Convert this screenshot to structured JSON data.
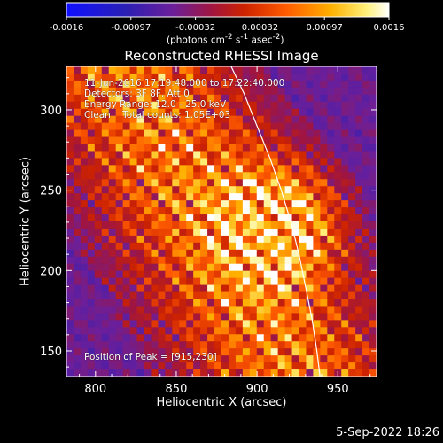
{
  "chart_data": {
    "type": "heatmap",
    "title": "Reconstructed RHESSI Image",
    "xlabel": "Heliocentric X (arcsec)",
    "ylabel": "Heliocentric Y (arcsec)",
    "xlim": [
      782,
      974
    ],
    "ylim": [
      134,
      327
    ],
    "x_ticks": [
      800,
      850,
      900,
      950
    ],
    "y_ticks": [
      150,
      200,
      250,
      300
    ],
    "colorbar": {
      "ticks": [
        "-0.0016",
        "-0.00097",
        "-0.00032",
        "0.00032",
        "0.00097",
        "0.0016"
      ],
      "range": [
        -0.0016,
        0.0016
      ],
      "units_html": "(photons cm<sup>-2</sup> s<sup>-1</sup> asec<sup>-2</sup>)"
    },
    "annotations": {
      "time": "11-Jun-2016 17:19:48.000 to 17:22:40.000",
      "detectors": "Detectors: 3F 8F, Att 0",
      "energy": "Energy Range: 12.0 - 25.0 keV",
      "clean": "Clean    Total counts: 1.05E+03",
      "peak": "Position of Peak = [915,230]"
    },
    "peak": [
      915,
      230
    ],
    "limb_curve": [
      [
        884,
        327
      ],
      [
        892,
        310
      ],
      [
        900,
        290
      ],
      [
        908,
        270
      ],
      [
        915,
        250
      ],
      [
        921,
        230
      ],
      [
        926,
        210
      ],
      [
        930,
        190
      ],
      [
        934,
        170
      ],
      [
        937,
        150
      ],
      [
        939,
        134
      ]
    ],
    "grid": false
  },
  "footer": {
    "date": "5-Sep-2022 18:26"
  }
}
